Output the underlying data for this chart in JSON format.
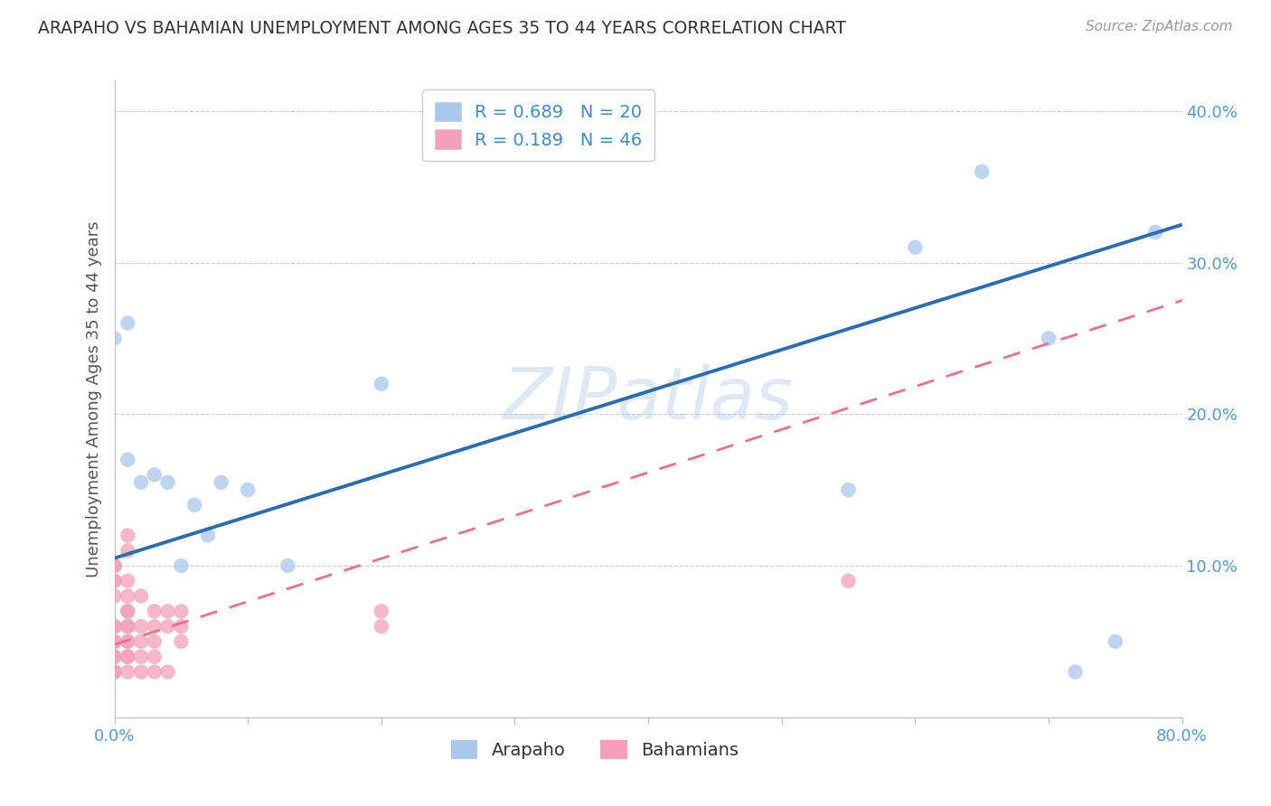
{
  "title": "ARAPAHO VS BAHAMIAN UNEMPLOYMENT AMONG AGES 35 TO 44 YEARS CORRELATION CHART",
  "source": "Source: ZipAtlas.com",
  "ylabel": "Unemployment Among Ages 35 to 44 years",
  "watermark": "ZIPatlas",
  "xlim": [
    0.0,
    0.8
  ],
  "ylim": [
    0.0,
    0.42
  ],
  "xticks": [
    0.0,
    0.1,
    0.2,
    0.3,
    0.4,
    0.5,
    0.6,
    0.7,
    0.8
  ],
  "yticks": [
    0.1,
    0.2,
    0.3,
    0.4
  ],
  "arapaho_color": "#a8c8ec",
  "bahamian_color": "#f4a0b8",
  "arapaho_line_color": "#2a6db5",
  "bahamian_line_color": "#e87090",
  "legend_arapaho_R": "0.689",
  "legend_arapaho_N": "20",
  "legend_bahamian_R": "0.189",
  "legend_bahamian_N": "46",
  "tick_color": "#5599cc",
  "grid_color": "#cccccc",
  "title_color": "#333333",
  "arapaho_x": [
    0.0,
    0.01,
    0.01,
    0.02,
    0.03,
    0.04,
    0.05,
    0.06,
    0.07,
    0.08,
    0.1,
    0.13,
    0.2,
    0.55,
    0.6,
    0.65,
    0.7,
    0.72,
    0.75,
    0.78
  ],
  "arapaho_y": [
    0.25,
    0.26,
    0.17,
    0.155,
    0.16,
    0.155,
    0.1,
    0.14,
    0.12,
    0.155,
    0.15,
    0.1,
    0.22,
    0.15,
    0.31,
    0.36,
    0.25,
    0.03,
    0.05,
    0.32
  ],
  "bahamian_x": [
    0.0,
    0.0,
    0.0,
    0.0,
    0.0,
    0.0,
    0.0,
    0.0,
    0.0,
    0.0,
    0.0,
    0.0,
    0.0,
    0.0,
    0.01,
    0.01,
    0.01,
    0.01,
    0.01,
    0.01,
    0.01,
    0.01,
    0.01,
    0.01,
    0.01,
    0.01,
    0.01,
    0.02,
    0.02,
    0.02,
    0.02,
    0.02,
    0.03,
    0.03,
    0.03,
    0.03,
    0.03,
    0.04,
    0.04,
    0.04,
    0.05,
    0.05,
    0.05,
    0.2,
    0.2,
    0.55
  ],
  "bahamian_y": [
    0.08,
    0.09,
    0.09,
    0.1,
    0.1,
    0.06,
    0.06,
    0.05,
    0.05,
    0.04,
    0.04,
    0.03,
    0.03,
    0.03,
    0.12,
    0.11,
    0.09,
    0.08,
    0.07,
    0.07,
    0.06,
    0.06,
    0.05,
    0.05,
    0.04,
    0.04,
    0.03,
    0.08,
    0.06,
    0.05,
    0.04,
    0.03,
    0.07,
    0.06,
    0.05,
    0.04,
    0.03,
    0.07,
    0.06,
    0.03,
    0.07,
    0.06,
    0.05,
    0.06,
    0.07,
    0.09
  ],
  "arapaho_line_x": [
    0.0,
    0.8
  ],
  "arapaho_line_y": [
    0.105,
    0.325
  ],
  "bahamian_line_x": [
    0.0,
    0.8
  ],
  "bahamian_line_y": [
    0.048,
    0.275
  ]
}
